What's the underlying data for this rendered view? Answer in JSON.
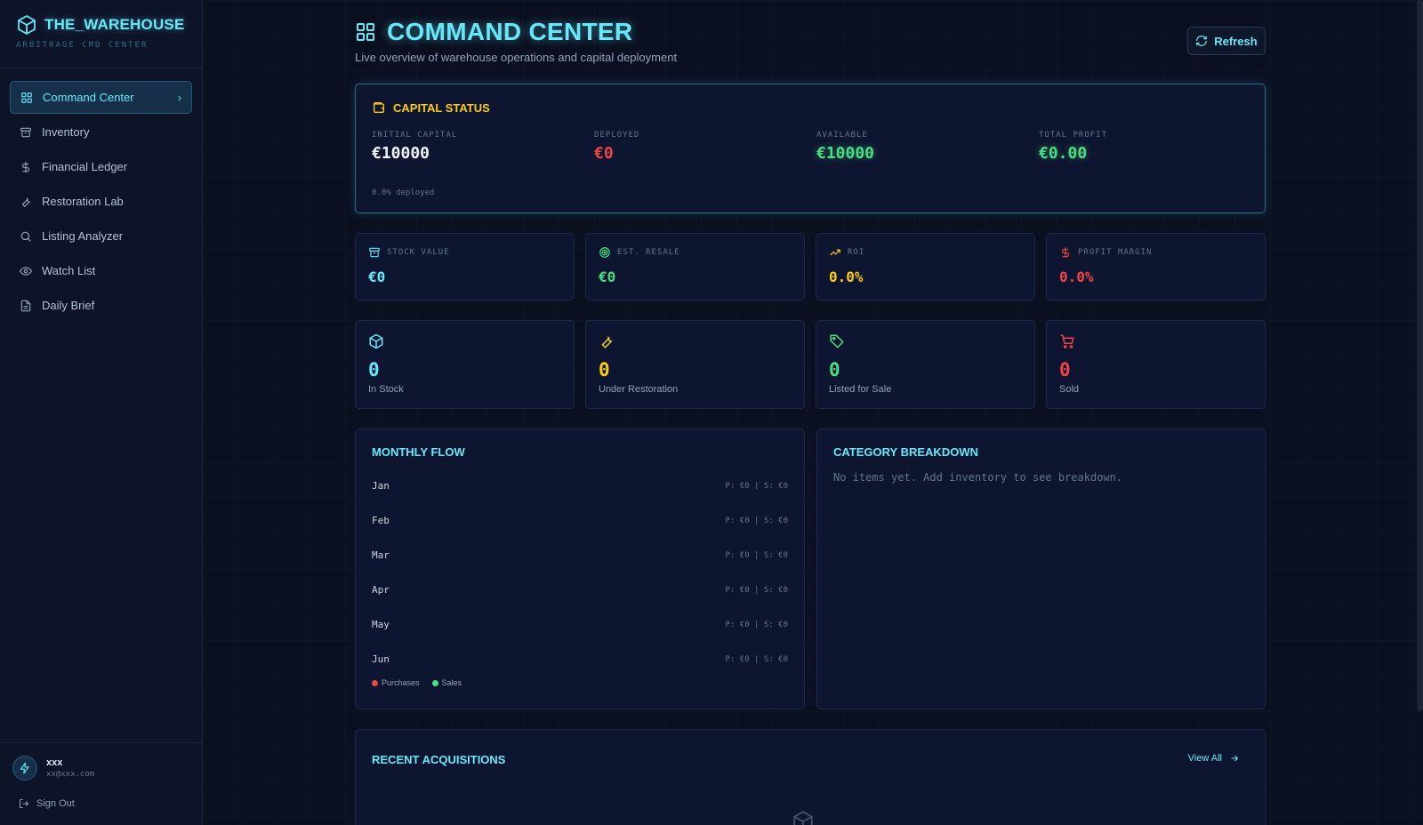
{
  "brand": {
    "title": "THE_WAREHOUSE",
    "subtitle": "ARBITRAGE CMD CENTER"
  },
  "nav": [
    {
      "label": "Command Center",
      "icon": "grid-icon",
      "active": true
    },
    {
      "label": "Inventory",
      "icon": "archive-icon"
    },
    {
      "label": "Financial Ledger",
      "icon": "dollar-icon"
    },
    {
      "label": "Restoration Lab",
      "icon": "wrench-icon"
    },
    {
      "label": "Listing Analyzer",
      "icon": "search-icon"
    },
    {
      "label": "Watch List",
      "icon": "eye-icon"
    },
    {
      "label": "Daily Brief",
      "icon": "document-icon"
    }
  ],
  "user": {
    "name": "xxx",
    "email": "xx@xxx.com",
    "sign_out": "Sign Out"
  },
  "header": {
    "title": "COMMAND CENTER",
    "subtitle": "Live overview of warehouse operations and capital deployment",
    "refresh_label": "Refresh"
  },
  "capital": {
    "title": "CAPITAL STATUS",
    "initial_label": "INITIAL CAPITAL",
    "initial_value": "€10000",
    "deployed_label": "DEPLOYED",
    "deployed_value": "€0",
    "available_label": "AVAILABLE",
    "available_value": "€10000",
    "profit_label": "TOTAL PROFIT",
    "profit_value": "€0.00",
    "deployed_pct": "0.0% deployed"
  },
  "metrics": [
    {
      "label": "STOCK VALUE",
      "value": "€0",
      "color": "#67e8f9",
      "icon": "archive-icon"
    },
    {
      "label": "EST. RESALE",
      "value": "€0",
      "color": "#4ade80",
      "icon": "target-icon"
    },
    {
      "label": "ROI",
      "value": "0.0%",
      "color": "#facc15",
      "icon": "trending-up-icon"
    },
    {
      "label": "PROFIT MARGIN",
      "value": "0.0%",
      "color": "#ef4444",
      "icon": "dollar-icon"
    }
  ],
  "counts": [
    {
      "label": "In Stock",
      "value": "0",
      "color": "#67e8f9",
      "icon": "box-icon"
    },
    {
      "label": "Under Restoration",
      "value": "0",
      "color": "#facc15",
      "icon": "wrench-icon"
    },
    {
      "label": "Listed for Sale",
      "value": "0",
      "color": "#4ade80",
      "icon": "tag-icon"
    },
    {
      "label": "Sold",
      "value": "0",
      "color": "#ef4444",
      "icon": "cart-icon"
    }
  ],
  "monthly_flow": {
    "title": "MONTHLY FLOW",
    "rows": [
      {
        "month": "Jan",
        "values": "P: €0 | S: €0"
      },
      {
        "month": "Feb",
        "values": "P: €0 | S: €0"
      },
      {
        "month": "Mar",
        "values": "P: €0 | S: €0"
      },
      {
        "month": "Apr",
        "values": "P: €0 | S: €0"
      },
      {
        "month": "May",
        "values": "P: €0 | S: €0"
      },
      {
        "month": "Jun",
        "values": "P: €0 | S: €0"
      }
    ],
    "legend_purchases": "Purchases",
    "legend_sales": "Sales"
  },
  "category_breakdown": {
    "title": "CATEGORY BREAKDOWN",
    "empty": "No items yet. Add inventory to see breakdown."
  },
  "recent": {
    "title": "RECENT ACQUISITIONS",
    "view_all": "View All"
  }
}
